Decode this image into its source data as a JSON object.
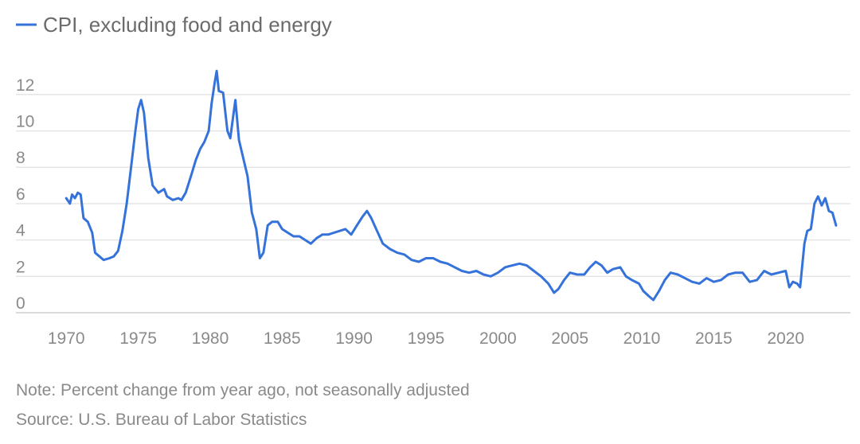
{
  "chart_data": {
    "type": "line",
    "title": "",
    "xlabel": "",
    "ylabel": "",
    "legend": {
      "placement": "top-left"
    },
    "grid": true,
    "xlim": [
      1966.5,
      2024.5
    ],
    "ylim": [
      0,
      14.4
    ],
    "x_ticks": [
      "1970",
      "1975",
      "1980",
      "1985",
      "1990",
      "1995",
      "2000",
      "2005",
      "2010",
      "2015",
      "2020"
    ],
    "y_ticks": [
      "0",
      "2",
      "4",
      "6",
      "8",
      "10",
      "12"
    ],
    "series": [
      {
        "name": "CPI, excluding food and energy",
        "color": "#3572d9",
        "points": [
          [
            1970.0,
            6.3
          ],
          [
            1970.25,
            6.0
          ],
          [
            1970.4,
            6.5
          ],
          [
            1970.6,
            6.3
          ],
          [
            1970.8,
            6.6
          ],
          [
            1971.0,
            6.5
          ],
          [
            1971.2,
            5.2
          ],
          [
            1971.5,
            5.0
          ],
          [
            1971.8,
            4.4
          ],
          [
            1972.0,
            3.3
          ],
          [
            1972.3,
            3.1
          ],
          [
            1972.6,
            2.9
          ],
          [
            1973.0,
            3.0
          ],
          [
            1973.3,
            3.1
          ],
          [
            1973.6,
            3.4
          ],
          [
            1973.9,
            4.5
          ],
          [
            1974.2,
            6.0
          ],
          [
            1974.5,
            8.0
          ],
          [
            1974.8,
            10.0
          ],
          [
            1975.0,
            11.2
          ],
          [
            1975.2,
            11.7
          ],
          [
            1975.4,
            11.0
          ],
          [
            1975.7,
            8.5
          ],
          [
            1976.0,
            7.0
          ],
          [
            1976.4,
            6.6
          ],
          [
            1976.8,
            6.8
          ],
          [
            1977.0,
            6.4
          ],
          [
            1977.4,
            6.2
          ],
          [
            1977.8,
            6.3
          ],
          [
            1978.0,
            6.2
          ],
          [
            1978.3,
            6.6
          ],
          [
            1978.7,
            7.6
          ],
          [
            1979.0,
            8.4
          ],
          [
            1979.3,
            9.0
          ],
          [
            1979.6,
            9.4
          ],
          [
            1979.9,
            10.0
          ],
          [
            1980.1,
            11.5
          ],
          [
            1980.3,
            12.6
          ],
          [
            1980.45,
            13.3
          ],
          [
            1980.6,
            12.2
          ],
          [
            1980.9,
            12.1
          ],
          [
            1981.2,
            10.0
          ],
          [
            1981.4,
            9.6
          ],
          [
            1981.6,
            10.8
          ],
          [
            1981.75,
            11.7
          ],
          [
            1982.0,
            9.5
          ],
          [
            1982.3,
            8.5
          ],
          [
            1982.6,
            7.5
          ],
          [
            1982.9,
            5.5
          ],
          [
            1983.2,
            4.6
          ],
          [
            1983.45,
            3.0
          ],
          [
            1983.7,
            3.3
          ],
          [
            1984.0,
            4.8
          ],
          [
            1984.3,
            5.0
          ],
          [
            1984.7,
            5.0
          ],
          [
            1985.0,
            4.6
          ],
          [
            1985.4,
            4.4
          ],
          [
            1985.8,
            4.2
          ],
          [
            1986.2,
            4.2
          ],
          [
            1986.6,
            4.0
          ],
          [
            1987.0,
            3.8
          ],
          [
            1987.4,
            4.1
          ],
          [
            1987.8,
            4.3
          ],
          [
            1988.2,
            4.3
          ],
          [
            1988.6,
            4.4
          ],
          [
            1989.0,
            4.5
          ],
          [
            1989.4,
            4.6
          ],
          [
            1989.8,
            4.3
          ],
          [
            1990.2,
            4.8
          ],
          [
            1990.6,
            5.3
          ],
          [
            1990.9,
            5.6
          ],
          [
            1991.2,
            5.2
          ],
          [
            1991.6,
            4.5
          ],
          [
            1992.0,
            3.8
          ],
          [
            1992.5,
            3.5
          ],
          [
            1993.0,
            3.3
          ],
          [
            1993.5,
            3.2
          ],
          [
            1994.0,
            2.9
          ],
          [
            1994.5,
            2.8
          ],
          [
            1995.0,
            3.0
          ],
          [
            1995.5,
            3.0
          ],
          [
            1996.0,
            2.8
          ],
          [
            1996.5,
            2.7
          ],
          [
            1997.0,
            2.5
          ],
          [
            1997.5,
            2.3
          ],
          [
            1998.0,
            2.2
          ],
          [
            1998.5,
            2.3
          ],
          [
            1999.0,
            2.1
          ],
          [
            1999.5,
            2.0
          ],
          [
            2000.0,
            2.2
          ],
          [
            2000.5,
            2.5
          ],
          [
            2001.0,
            2.6
          ],
          [
            2001.5,
            2.7
          ],
          [
            2002.0,
            2.6
          ],
          [
            2002.5,
            2.3
          ],
          [
            2003.0,
            2.0
          ],
          [
            2003.5,
            1.6
          ],
          [
            2003.9,
            1.1
          ],
          [
            2004.2,
            1.3
          ],
          [
            2004.6,
            1.8
          ],
          [
            2005.0,
            2.2
          ],
          [
            2005.5,
            2.1
          ],
          [
            2006.0,
            2.1
          ],
          [
            2006.4,
            2.5
          ],
          [
            2006.8,
            2.8
          ],
          [
            2007.2,
            2.6
          ],
          [
            2007.6,
            2.2
          ],
          [
            2008.0,
            2.4
          ],
          [
            2008.5,
            2.5
          ],
          [
            2008.9,
            2.0
          ],
          [
            2009.3,
            1.8
          ],
          [
            2009.8,
            1.6
          ],
          [
            2010.1,
            1.2
          ],
          [
            2010.5,
            0.9
          ],
          [
            2010.8,
            0.7
          ],
          [
            2011.2,
            1.2
          ],
          [
            2011.6,
            1.8
          ],
          [
            2012.0,
            2.2
          ],
          [
            2012.5,
            2.1
          ],
          [
            2013.0,
            1.9
          ],
          [
            2013.5,
            1.7
          ],
          [
            2014.0,
            1.6
          ],
          [
            2014.5,
            1.9
          ],
          [
            2015.0,
            1.7
          ],
          [
            2015.5,
            1.8
          ],
          [
            2016.0,
            2.1
          ],
          [
            2016.5,
            2.2
          ],
          [
            2017.0,
            2.2
          ],
          [
            2017.5,
            1.7
          ],
          [
            2018.0,
            1.8
          ],
          [
            2018.5,
            2.3
          ],
          [
            2019.0,
            2.1
          ],
          [
            2019.5,
            2.2
          ],
          [
            2020.0,
            2.3
          ],
          [
            2020.25,
            1.4
          ],
          [
            2020.5,
            1.7
          ],
          [
            2020.8,
            1.6
          ],
          [
            2021.0,
            1.4
          ],
          [
            2021.3,
            3.8
          ],
          [
            2021.5,
            4.5
          ],
          [
            2021.75,
            4.6
          ],
          [
            2022.0,
            6.0
          ],
          [
            2022.25,
            6.4
          ],
          [
            2022.5,
            5.9
          ],
          [
            2022.75,
            6.3
          ],
          [
            2023.0,
            5.6
          ],
          [
            2023.25,
            5.5
          ],
          [
            2023.5,
            4.8
          ]
        ]
      }
    ]
  },
  "footer": {
    "note": "Note: Percent change from year ago, not seasonally adjusted",
    "source": "Source: U.S. Bureau of Labor Statistics"
  }
}
